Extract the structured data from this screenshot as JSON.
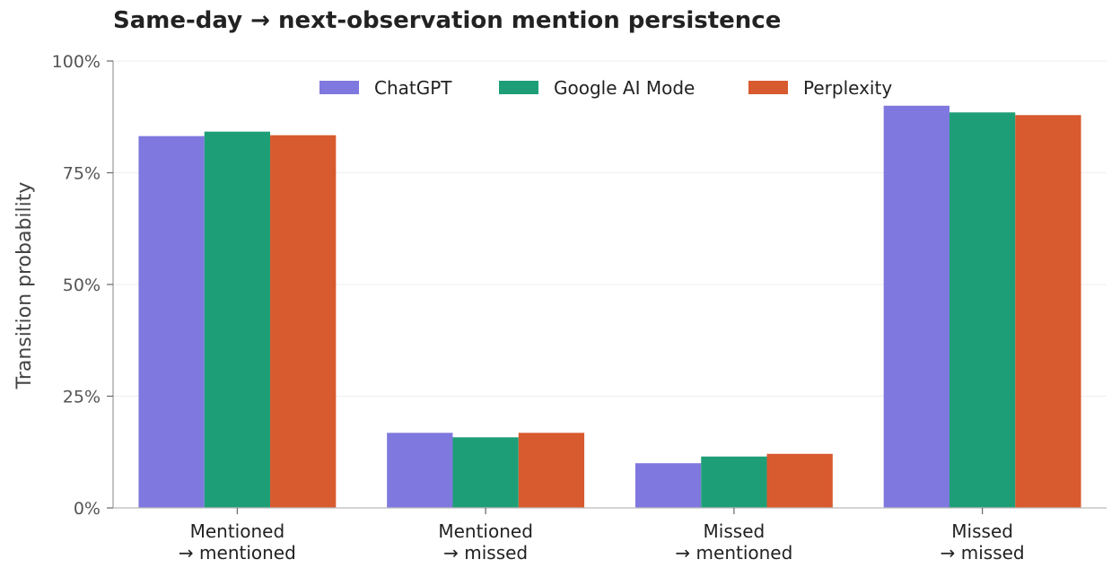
{
  "chart_data": {
    "type": "bar",
    "title": "Same-day → next-observation mention persistence",
    "xlabel": "",
    "ylabel": "Transition probability",
    "ylim": [
      0,
      1
    ],
    "yticks": [
      {
        "value": 0,
        "label": "0%"
      },
      {
        "value": 0.25,
        "label": "25%"
      },
      {
        "value": 0.5,
        "label": "50%"
      },
      {
        "value": 0.75,
        "label": "75%"
      },
      {
        "value": 1.0,
        "label": "100%"
      }
    ],
    "categories": [
      [
        "Mentioned",
        "→ mentioned"
      ],
      [
        "Mentioned",
        "→ missed"
      ],
      [
        "Missed",
        "→ mentioned"
      ],
      [
        "Missed",
        "→ missed"
      ]
    ],
    "series": [
      {
        "name": "ChatGPT",
        "color": "#7F78DE",
        "values": [
          0.832,
          0.168,
          0.1,
          0.9
        ]
      },
      {
        "name": "Google AI Mode",
        "color": "#1E9E77",
        "values": [
          0.842,
          0.158,
          0.115,
          0.885
        ]
      },
      {
        "name": "Perplexity",
        "color": "#D85A2F",
        "values": [
          0.834,
          0.168,
          0.121,
          0.879
        ]
      }
    ],
    "grid": true,
    "legend": "top-center"
  }
}
